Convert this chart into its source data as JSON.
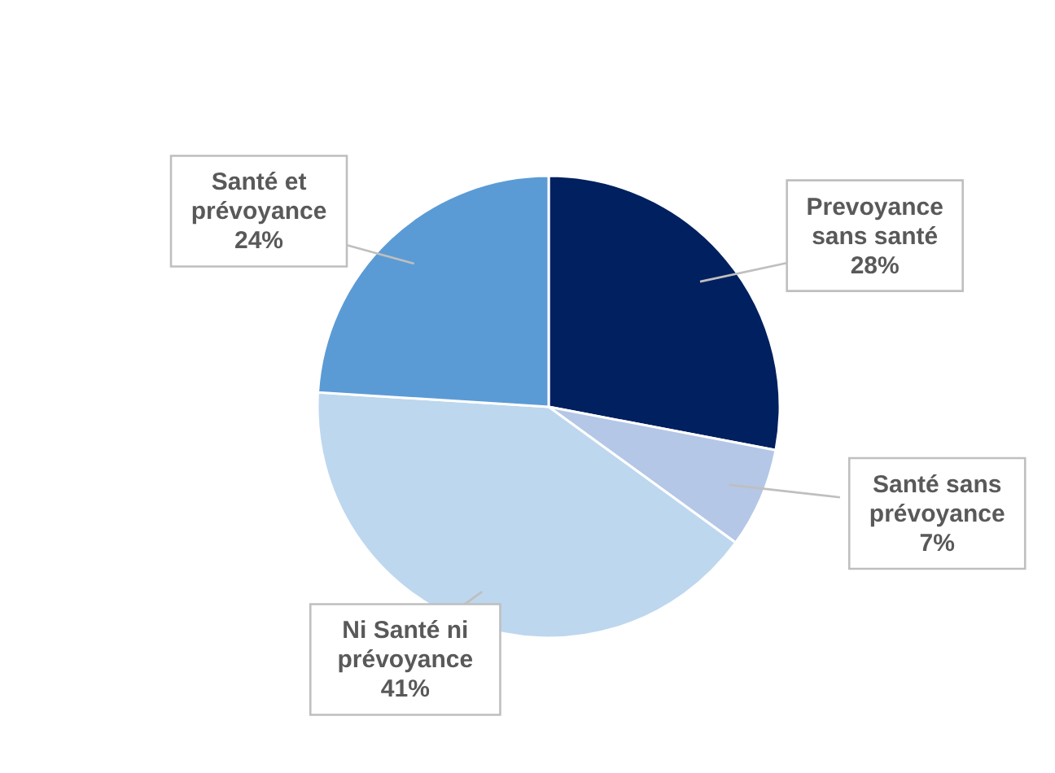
{
  "chart_data": {
    "type": "pie",
    "categories": [
      "Prevoyance sans santé",
      "Santé sans prévoyance",
      "Ni Santé ni prévoyance",
      "Santé et prévoyance"
    ],
    "values": [
      28,
      7,
      41,
      24
    ],
    "colors": [
      "#002060",
      "#b4c7e7",
      "#bdd7ee",
      "#5b9bd5"
    ],
    "value_labels": [
      "28%",
      "7%",
      "41%",
      "24%"
    ]
  }
}
